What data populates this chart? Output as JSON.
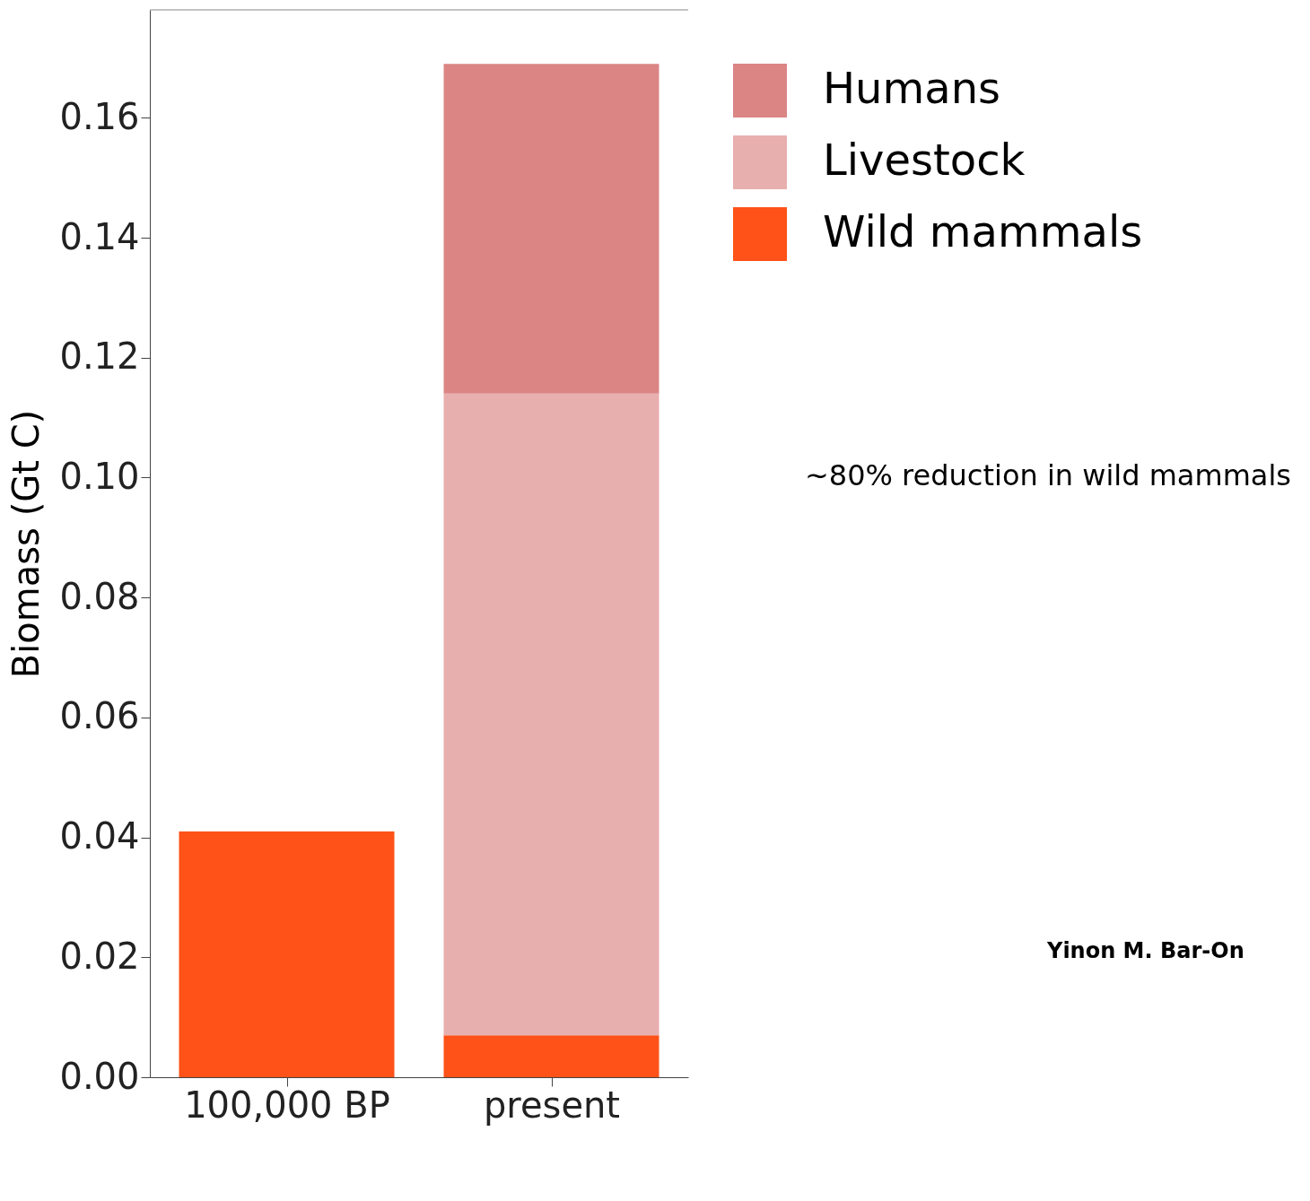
{
  "chart_data": {
    "type": "bar",
    "stacked": true,
    "ylabel": "Biomass (Gt C)",
    "categories": [
      "100,000 BP",
      "present"
    ],
    "series": [
      {
        "name": "Wild mammals",
        "color": "#fe5218",
        "values": [
          0.041,
          0.007
        ]
      },
      {
        "name": "Livestock",
        "color": "#e8afaf",
        "values": [
          null,
          0.107
        ]
      },
      {
        "name": "Humans",
        "color": "#db8585",
        "values": [
          null,
          0.055
        ]
      }
    ],
    "ylim": [
      0,
      0.178
    ],
    "yticks": [
      {
        "value": 0,
        "label": "0.00"
      },
      0.02,
      0.04,
      0.06,
      0.08,
      {
        "value": 0.1,
        "label": "0.10"
      },
      0.12,
      0.14,
      0.16
    ],
    "grid": false,
    "legend": "top right",
    "annotations": [
      "~80% reduction in wild mammals",
      "Yinon M. Bar-On"
    ]
  }
}
